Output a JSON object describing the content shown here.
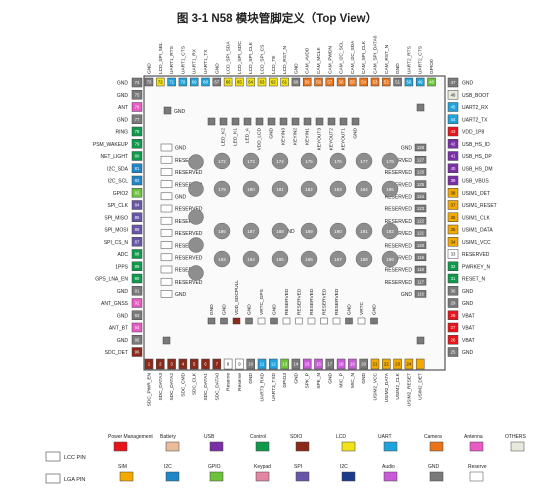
{
  "title": "图 3-1 N58 模块管脚定义（Top View）",
  "colors": {
    "power": "#e8141b",
    "battery": "#e8bb9a",
    "usb": "#7b2fa6",
    "control": "#0e9a4a",
    "sdio": "#8b2a1a",
    "lcd": "#f2e21a",
    "uart": "#1ea3dc",
    "camera": "#e8731a",
    "antenna": "#e85ac4",
    "others": "#e7e9dd",
    "sim": "#f2a900",
    "i2c": "#1f86c8",
    "gpio": "#6dc23b",
    "keypad": "#e2879f",
    "spi": "#6a56a8",
    "i2c2": "#1b3a8a",
    "audio": "#c95ad8",
    "gnd": "#7a7a7a",
    "reserve": "#ffffff"
  },
  "top_pins": [
    {
      "num": "73",
      "label": "GND",
      "c": "gnd"
    },
    {
      "num": "72",
      "label": "LCD_SPI_SEL",
      "c": "lcd"
    },
    {
      "num": "71",
      "label": "UART1_RTS",
      "c": "uart"
    },
    {
      "num": "70",
      "label": "UART1_CTS",
      "c": "uart"
    },
    {
      "num": "69",
      "label": "UART1_RX",
      "c": "uart"
    },
    {
      "num": "68",
      "label": "UART1_TX",
      "c": "uart"
    },
    {
      "num": "67",
      "label": "GND",
      "c": "gnd"
    },
    {
      "num": "66",
      "label": "LCD_SPI_SDA",
      "c": "lcd"
    },
    {
      "num": "65",
      "label": "LCD_SPI_SDC",
      "c": "lcd"
    },
    {
      "num": "64",
      "label": "LCD_SPI_CLK",
      "c": "lcd"
    },
    {
      "num": "63",
      "label": "LCD_SPI_CS",
      "c": "lcd"
    },
    {
      "num": "62",
      "label": "LCD_TE",
      "c": "lcd"
    },
    {
      "num": "61",
      "label": "LCD_RST_N",
      "c": "lcd"
    },
    {
      "num": "60",
      "label": "GND",
      "c": "gnd"
    },
    {
      "num": "59",
      "label": "CAM_AVDD",
      "c": "camera"
    },
    {
      "num": "58",
      "label": "CAM_MCLK",
      "c": "camera"
    },
    {
      "num": "57",
      "label": "CAM_PWDN",
      "c": "camera"
    },
    {
      "num": "56",
      "label": "CAM_I2C_SCL",
      "c": "camera"
    },
    {
      "num": "55",
      "label": "CAM_I2C_SDA",
      "c": "camera"
    },
    {
      "num": "54",
      "label": "CAM_SPI_CLK",
      "c": "camera"
    },
    {
      "num": "53",
      "label": "CAM_SPI_DATA0",
      "c": "camera"
    },
    {
      "num": "52",
      "label": "CAM_RST_N",
      "c": "camera"
    },
    {
      "num": "51",
      "label": "GND",
      "c": "gnd"
    },
    {
      "num": "50",
      "label": "UART2_RTS",
      "c": "uart"
    },
    {
      "num": "49",
      "label": "UART2_CTS",
      "c": "uart"
    },
    {
      "num": "48",
      "label": "GPIO0",
      "c": "gpio"
    }
  ],
  "left_pins": [
    {
      "num": "74",
      "label": "GND",
      "c": "gnd"
    },
    {
      "num": "75",
      "label": "GND",
      "c": "gnd"
    },
    {
      "num": "76",
      "label": "ANT",
      "c": "antenna"
    },
    {
      "num": "77",
      "label": "GND",
      "c": "gnd"
    },
    {
      "num": "78",
      "label": "RING",
      "c": "control"
    },
    {
      "num": "79",
      "label": "PSM_WAKEUP",
      "c": "control"
    },
    {
      "num": "80",
      "label": "NET_LIGHT",
      "c": "control"
    },
    {
      "num": "81",
      "label": "I2C_SDA",
      "c": "i2c"
    },
    {
      "num": "82",
      "label": "I2C_SCL",
      "c": "i2c"
    },
    {
      "num": "83",
      "label": "GPIO2",
      "c": "gpio"
    },
    {
      "num": "84",
      "label": "SPI_CLK",
      "c": "spi"
    },
    {
      "num": "85",
      "label": "SPI_MISO",
      "c": "spi"
    },
    {
      "num": "86",
      "label": "SPI_MOSI",
      "c": "spi"
    },
    {
      "num": "87",
      "label": "SPI_CS_N",
      "c": "spi"
    },
    {
      "num": "88",
      "label": "ADC",
      "c": "control"
    },
    {
      "num": "89",
      "label": "1PPS",
      "c": "control"
    },
    {
      "num": "90",
      "label": "GPS_LNA_EN",
      "c": "control"
    },
    {
      "num": "91",
      "label": "GND",
      "c": "gnd"
    },
    {
      "num": "92",
      "label": "ANT_GNSS",
      "c": "antenna"
    },
    {
      "num": "93",
      "label": "GND",
      "c": "gnd"
    },
    {
      "num": "94",
      "label": "ANT_BT",
      "c": "antenna"
    },
    {
      "num": "95",
      "label": "GND",
      "c": "gnd"
    },
    {
      "num": "96",
      "label": "SDC_DET",
      "c": "sdio"
    }
  ],
  "right_pins": [
    {
      "num": "47",
      "label": "GND",
      "c": "gnd"
    },
    {
      "num": "46",
      "label": "USB_BOOT",
      "c": "others"
    },
    {
      "num": "45",
      "label": "UART2_RX",
      "c": "uart"
    },
    {
      "num": "44",
      "label": "UART2_TX",
      "c": "uart"
    },
    {
      "num": "43",
      "label": "VDD_1P8",
      "c": "power"
    },
    {
      "num": "42",
      "label": "USB_HS_ID",
      "c": "usb"
    },
    {
      "num": "41",
      "label": "USB_HS_DP",
      "c": "usb"
    },
    {
      "num": "40",
      "label": "USB_HS_DM",
      "c": "usb"
    },
    {
      "num": "39",
      "label": "USB_VBUS",
      "c": "usb"
    },
    {
      "num": "38",
      "label": "USIM1_DET",
      "c": "sim"
    },
    {
      "num": "37",
      "label": "USIM1_RESET",
      "c": "sim"
    },
    {
      "num": "36",
      "label": "USIM1_CLK",
      "c": "sim"
    },
    {
      "num": "35",
      "label": "USIM1_DATA",
      "c": "sim"
    },
    {
      "num": "34",
      "label": "USIM1_VCC",
      "c": "sim"
    },
    {
      "num": "33",
      "label": "RESERVED",
      "c": "reserve"
    },
    {
      "num": "32",
      "label": "PWRKEY_N",
      "c": "control"
    },
    {
      "num": "31",
      "label": "RESET_N",
      "c": "control"
    },
    {
      "num": "30",
      "label": "GND",
      "c": "gnd"
    },
    {
      "num": "29",
      "label": "GND",
      "c": "gnd"
    },
    {
      "num": "28",
      "label": "VBAT",
      "c": "power"
    },
    {
      "num": "27",
      "label": "VBAT",
      "c": "power"
    },
    {
      "num": "26",
      "label": "VBAT",
      "c": "power"
    },
    {
      "num": "25",
      "label": "GND",
      "c": "gnd"
    }
  ],
  "bottom_pins": [
    {
      "num": "1",
      "label": "SDC_PWR_EN",
      "c": "sdio"
    },
    {
      "num": "2",
      "label": "SDC_DATA3",
      "c": "sdio"
    },
    {
      "num": "3",
      "label": "SDC_DATA2",
      "c": "sdio"
    },
    {
      "num": "4",
      "label": "SDC_CMD",
      "c": "sdio"
    },
    {
      "num": "5",
      "label": "SDC_CLK",
      "c": "sdio"
    },
    {
      "num": "6",
      "label": "SDC_DATA1",
      "c": "sdio"
    },
    {
      "num": "7",
      "label": "SDC_DATA0",
      "c": "sdio"
    },
    {
      "num": "8",
      "label": "Reserve",
      "c": "reserve"
    },
    {
      "num": "9",
      "label": "Reserve",
      "c": "reserve"
    },
    {
      "num": "10",
      "label": "GND",
      "c": "gnd"
    },
    {
      "num": "11",
      "label": "UART3_RXD",
      "c": "uart"
    },
    {
      "num": "12",
      "label": "UART3_TXD",
      "c": "uart"
    },
    {
      "num": "13",
      "label": "GPIO3",
      "c": "gpio"
    },
    {
      "num": "14",
      "label": "GND",
      "c": "gnd"
    },
    {
      "num": "15",
      "label": "SPK_P",
      "c": "audio"
    },
    {
      "num": "16",
      "label": "SPK_N",
      "c": "audio"
    },
    {
      "num": "17",
      "label": "GND",
      "c": "gnd"
    },
    {
      "num": "18",
      "label": "MIC_P",
      "c": "audio"
    },
    {
      "num": "19",
      "label": "MIC_N",
      "c": "audio"
    },
    {
      "num": "20",
      "label": "GND",
      "c": "gnd"
    },
    {
      "num": "21",
      "label": "USIM2_VCC",
      "c": "sim"
    },
    {
      "num": "22",
      "label": "USIM2_DATA",
      "c": "sim"
    },
    {
      "num": "23",
      "label": "USIM2_CLK",
      "c": "sim"
    },
    {
      "num": "24",
      "label": "USIM2_RESET",
      "c": "sim"
    },
    {
      "num": "",
      "label": "USIM2_DET",
      "c": "sim"
    }
  ],
  "inner_top": [
    {
      "num": "",
      "label": "",
      "c": "gnd"
    },
    {
      "num": "",
      "label": "LED_K2",
      "c": "gnd"
    },
    {
      "num": "",
      "label": "LED_K1",
      "c": "gnd"
    },
    {
      "num": "",
      "label": "LED_A",
      "c": "gnd"
    },
    {
      "num": "",
      "label": "VDD_LCD",
      "c": "gnd"
    },
    {
      "num": "",
      "label": "GND",
      "c": "gnd"
    },
    {
      "num": "",
      "label": "KEYIN3",
      "c": "gnd"
    },
    {
      "num": "",
      "label": "KEYIN2",
      "c": "gnd"
    },
    {
      "num": "",
      "label": "KEYIN1",
      "c": "gnd"
    },
    {
      "num": "",
      "label": "KEYOUT3",
      "c": "gnd"
    },
    {
      "num": "",
      "label": "KEYOUT2",
      "c": "gnd"
    },
    {
      "num": "",
      "label": "KEYOUT1",
      "c": "gnd"
    },
    {
      "num": "",
      "label": "GND",
      "c": "gnd"
    }
  ],
  "inner_left": [
    {
      "num": "143",
      "label": "GND"
    },
    {
      "num": "144",
      "label": "RESERVED"
    },
    {
      "num": "145",
      "label": "RESERVED"
    },
    {
      "num": "146",
      "label": "RESERVED"
    },
    {
      "num": "147",
      "label": "GND"
    },
    {
      "num": "148",
      "label": "RESERVED"
    },
    {
      "num": "149",
      "label": "RESERVED"
    },
    {
      "num": "150",
      "label": "RESERVED"
    },
    {
      "num": "151",
      "label": "RESERVED"
    },
    {
      "num": "152",
      "label": "RESERVED"
    },
    {
      "num": "153",
      "label": "RESERVED"
    },
    {
      "num": "154",
      "label": "RESERVED"
    },
    {
      "num": "155",
      "label": "GND"
    }
  ],
  "inner_right": [
    {
      "num": "128",
      "label": "GND"
    },
    {
      "num": "127",
      "label": "RESERVED"
    },
    {
      "num": "126",
      "label": "RESERVED"
    },
    {
      "num": "125",
      "label": "RESERVED"
    },
    {
      "num": "124",
      "label": "RESERVED"
    },
    {
      "num": "123",
      "label": "RESERVED"
    },
    {
      "num": "122",
      "label": "RESERVED"
    },
    {
      "num": "121",
      "label": "RESERVED"
    },
    {
      "num": "120",
      "label": "RESERVED"
    },
    {
      "num": "119",
      "label": "RESERVED"
    },
    {
      "num": "118",
      "label": "RESERVED"
    },
    {
      "num": "117",
      "label": "RESERVED"
    },
    {
      "num": "116",
      "label": "GND"
    }
  ],
  "inner_bottom": [
    {
      "num": "",
      "label": "GND",
      "c": "gnd"
    },
    {
      "num": "",
      "label": "GND",
      "c": "gnd"
    },
    {
      "num": "",
      "label": "VDD_SDCPULL",
      "c": "sdio"
    },
    {
      "num": "",
      "label": "GND",
      "c": "gnd"
    },
    {
      "num": "",
      "label": "VRTC_GPS",
      "c": "reserve"
    },
    {
      "num": "",
      "label": "GND",
      "c": "gnd"
    },
    {
      "num": "",
      "label": "RESERVED",
      "c": "reserve"
    },
    {
      "num": "",
      "label": "RESERVED",
      "c": "reserve"
    },
    {
      "num": "",
      "label": "RESERVED",
      "c": "reserve"
    },
    {
      "num": "",
      "label": "RESERVED",
      "c": "reserve"
    },
    {
      "num": "",
      "label": "RESERVED",
      "c": "reserve"
    },
    {
      "num": "",
      "label": "GND",
      "c": "gnd"
    },
    {
      "num": "",
      "label": "VRTC",
      "c": "reserve"
    },
    {
      "num": "",
      "label": "GND",
      "c": "gnd"
    }
  ],
  "misc": {
    "gnd_tl": "GND",
    "gnd_center": "GND"
  },
  "pads": [
    "172",
    "173",
    "174",
    "175",
    "176",
    "177",
    "178",
    "179",
    "180",
    "181",
    "182",
    "183",
    "184",
    "185",
    "186",
    "187",
    "188",
    "189",
    "190",
    "191",
    "192",
    "193",
    "194",
    "195",
    "196",
    "197",
    "198",
    "199"
  ],
  "legend_lcc": "LCC PIN",
  "legend_lga": "LGA PIN",
  "legend": [
    {
      "label": "Power Management",
      "c": "power"
    },
    {
      "label": "Battery",
      "c": "battery"
    },
    {
      "label": "USB",
      "c": "usb"
    },
    {
      "label": "Control",
      "c": "control"
    },
    {
      "label": "SDIO",
      "c": "sdio"
    },
    {
      "label": "LCD",
      "c": "lcd"
    },
    {
      "label": "UART",
      "c": "uart"
    },
    {
      "label": "Camera",
      "c": "camera"
    },
    {
      "label": "Antenna",
      "c": "antenna"
    },
    {
      "label": "OTHERS",
      "c": "others"
    },
    {
      "label": "SIM",
      "c": "sim"
    },
    {
      "label": "I2C",
      "c": "i2c"
    },
    {
      "label": "GPIO",
      "c": "gpio"
    },
    {
      "label": "Keypad",
      "c": "keypad"
    },
    {
      "label": "SPI",
      "c": "spi"
    },
    {
      "label": "I2C",
      "c": "i2c2"
    },
    {
      "label": "Audio",
      "c": "audio"
    },
    {
      "label": "GND",
      "c": "gnd"
    },
    {
      "label": "Reserve",
      "c": "reserve"
    }
  ]
}
